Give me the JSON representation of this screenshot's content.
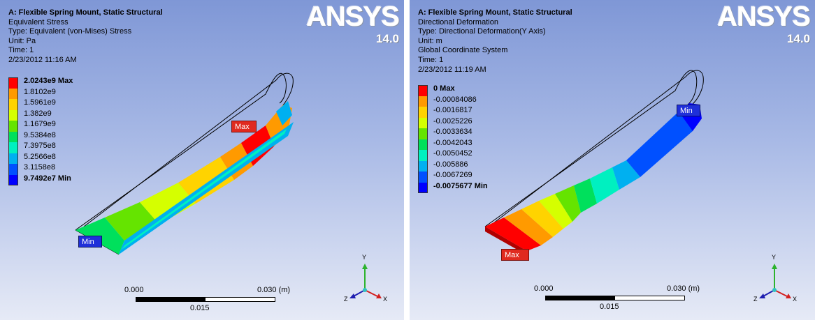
{
  "logo": {
    "brand": "ANSYS",
    "version": "14.0"
  },
  "left": {
    "lines": [
      "A: Flexible Spring Mount, Static Structural",
      "Equivalent Stress",
      "Type: Equivalent (von-Mises) Stress",
      "Unit: Pa",
      "Time: 1",
      "2/23/2012 11:16 AM"
    ],
    "legend": [
      "2.0243e9 Max",
      "1.8102e9",
      "1.5961e9",
      "1.382e9",
      "1.1679e9",
      "9.5384e8",
      "7.3975e8",
      "5.2566e8",
      "3.1158e8",
      "9.7492e7 Min"
    ],
    "tags": {
      "max": "Max",
      "min": "Min"
    },
    "scale": {
      "left": "0.000",
      "right": "0.030 (m)",
      "mid": "0.015"
    }
  },
  "right": {
    "lines": [
      "A: Flexible Spring Mount, Static Structural",
      "Directional Deformation",
      "Type: Directional Deformation(Y Axis)",
      "Unit: m",
      "Global Coordinate System",
      "Time: 1",
      "2/23/2012 11:19 AM"
    ],
    "legend": [
      "0 Max",
      "-0.00084086",
      "-0.0016817",
      "-0.0025226",
      "-0.0033634",
      "-0.0042043",
      "-0.0050452",
      "-0.005886",
      "-0.0067269",
      "-0.0075677 Min"
    ],
    "tags": {
      "max": "Max",
      "min": "Min"
    },
    "scale": {
      "left": "0.000",
      "right": "0.030 (m)",
      "mid": "0.015"
    }
  },
  "triad": {
    "x": "X",
    "y": "Y",
    "z": "Z"
  },
  "colors": {
    "contour": [
      "#ff0000",
      "#ff9a00",
      "#ffd300",
      "#d5ff00",
      "#65e400",
      "#00e05c",
      "#00f0c0",
      "#00b0f0",
      "#0050ff",
      "#0000ff"
    ],
    "max_tag": "#e02a1f",
    "min_tag": "#1f2fd9"
  }
}
